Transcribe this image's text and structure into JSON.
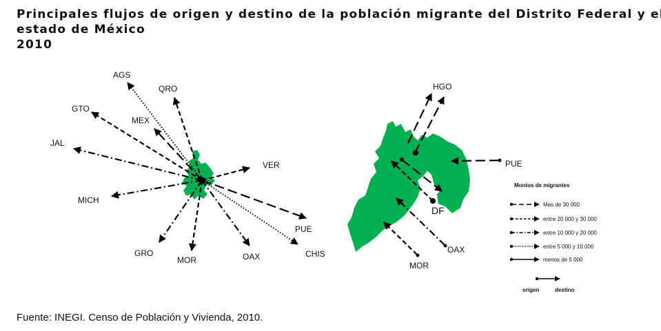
{
  "title": {
    "line1": "Principales flujos de origen y destino de la población migrante del Distrito Federal y el",
    "line2": "estado de México",
    "line3": "2010"
  },
  "source": "Fuente: INEGI. Censo de Población y Vivienda, 2010.",
  "colors": {
    "region_fill": "#00b050",
    "arrow": "#000000"
  },
  "left_map": {
    "region": "estado de México",
    "labels": {
      "ags": "AGS",
      "qro": "QRO",
      "gto": "GTO",
      "mex": "MEX",
      "jal": "JAL",
      "ver": "VER",
      "mich": "MICH",
      "pue": "PUE",
      "gro": "GRO",
      "mor": "MOR",
      "oax": "OAX",
      "chis": "CHIS"
    }
  },
  "right_map": {
    "region": "Distrito Federal",
    "labels": {
      "hgo": "HGO",
      "pue": "PUE",
      "df": "DF",
      "oax": "OAX",
      "mor": "MOR"
    }
  },
  "legend": {
    "title": "Montos  de  migrantes",
    "items": [
      {
        "label": "Mas de 30 000",
        "style": "long-dash"
      },
      {
        "label": "entre 20 000 y 30 000",
        "style": "short-dash"
      },
      {
        "label": "entre 10 000 y 20 000",
        "style": "dash-dot"
      },
      {
        "label": "entre 5 000 y 10 000",
        "style": "dotted"
      },
      {
        "label": "menos de 5 000",
        "style": "solid"
      }
    ],
    "origin_label": "origen",
    "dest_label": "destino"
  },
  "flows_left": [
    {
      "from": "MEX",
      "to": "AGS",
      "style": "dotted"
    },
    {
      "from": "MEX",
      "to": "QRO",
      "style": "short-dash"
    },
    {
      "from": "MEX",
      "to": "GTO",
      "style": "short-dash"
    },
    {
      "from": "MEX",
      "to": "MEX",
      "style": "long-dash"
    },
    {
      "from": "MEX",
      "to": "JAL",
      "style": "dash-dot"
    },
    {
      "from": "MEX",
      "to": "VER",
      "style": "short-dash"
    },
    {
      "from": "MEX",
      "to": "MICH",
      "style": "dash-dot"
    },
    {
      "from": "MEX",
      "to": "PUE",
      "style": "long-dash"
    },
    {
      "from": "MEX",
      "to": "CHIS",
      "style": "dotted"
    },
    {
      "from": "MEX",
      "to": "OAX",
      "style": "dash-dot"
    },
    {
      "from": "MEX",
      "to": "MOR",
      "style": "short-dash"
    },
    {
      "from": "MEX",
      "to": "GRO",
      "style": "dash-dot"
    }
  ],
  "flows_right": [
    {
      "from": "DF",
      "to": "HGO",
      "style": "long-dash"
    },
    {
      "from": "PUE",
      "to": "DF",
      "style": "long-dash"
    },
    {
      "from": "OAX",
      "to": "DF",
      "style": "dash-dot"
    },
    {
      "from": "MOR",
      "to": "DF",
      "style": "short-dash"
    }
  ]
}
